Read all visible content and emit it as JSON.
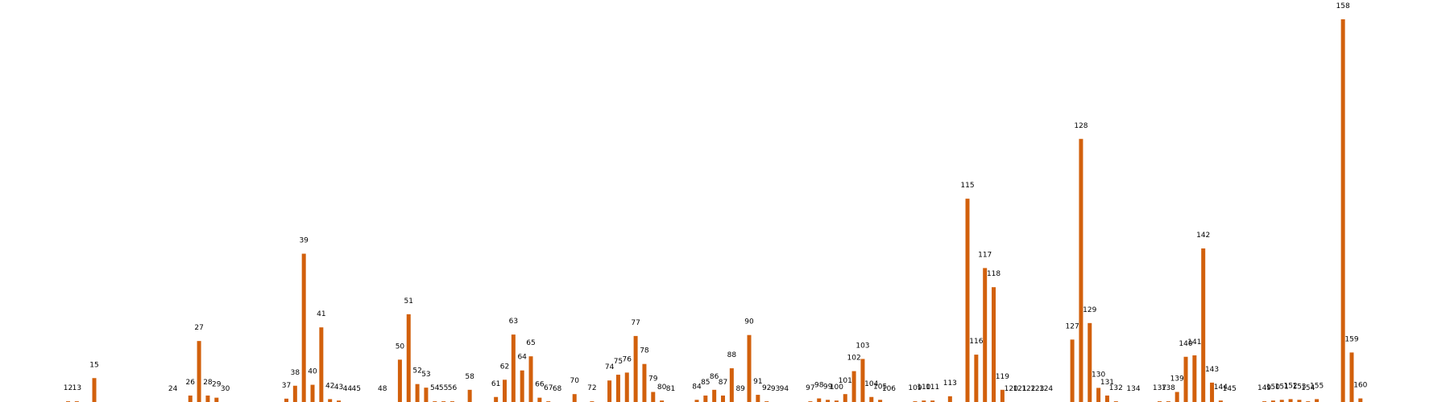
{
  "chart_data": {
    "type": "bar",
    "ylim": [
      0,
      160
    ],
    "grid": false,
    "legend": "none",
    "bar_color": "#d2600c",
    "categories": [
      "12",
      "13",
      "15",
      "24",
      "26",
      "27",
      "28",
      "29",
      "30",
      "37",
      "38",
      "39",
      "40",
      "41",
      "42",
      "43",
      "44",
      "45",
      "48",
      "50",
      "51",
      "52",
      "53",
      "54",
      "55",
      "56",
      "58",
      "61",
      "62",
      "63",
      "64",
      "65",
      "66",
      "67",
      "68",
      "70",
      "72",
      "74",
      "75",
      "76",
      "77",
      "78",
      "79",
      "80",
      "81",
      "84",
      "85",
      "86",
      "87",
      "88",
      "89",
      "90",
      "91",
      "92",
      "93",
      "94",
      "97",
      "98",
      "99",
      "100",
      "101",
      "102",
      "103",
      "104",
      "105",
      "106",
      "109",
      "110",
      "111",
      "113",
      "115",
      "116",
      "117",
      "118",
      "119",
      "120",
      "121",
      "122",
      "123",
      "124",
      "127",
      "128",
      "129",
      "130",
      "131",
      "132",
      "134",
      "137",
      "138",
      "139",
      "140",
      "141",
      "142",
      "143",
      "144",
      "145",
      "149",
      "150",
      "151",
      "152",
      "153",
      "154",
      "155",
      "158",
      "159",
      "160"
    ],
    "x": [
      12,
      13,
      15,
      24,
      26,
      27,
      28,
      29,
      30,
      37,
      38,
      39,
      40,
      41,
      42,
      43,
      44,
      45,
      48,
      50,
      51,
      52,
      53,
      54,
      55,
      56,
      58,
      61,
      62,
      63,
      64,
      65,
      66,
      67,
      68,
      70,
      72,
      74,
      75,
      76,
      77,
      78,
      79,
      80,
      81,
      84,
      85,
      86,
      87,
      88,
      89,
      90,
      91,
      92,
      93,
      94,
      97,
      98,
      99,
      100,
      101,
      102,
      103,
      104,
      105,
      106,
      109,
      110,
      111,
      113,
      115,
      116,
      117,
      118,
      119,
      120,
      121,
      122,
      123,
      124,
      127,
      128,
      129,
      130,
      131,
      132,
      134,
      137,
      138,
      139,
      140,
      141,
      142,
      143,
      144,
      145,
      149,
      150,
      151,
      152,
      153,
      154,
      155,
      158,
      159,
      160
    ],
    "values": [
      0.3,
      0.3,
      10,
      0,
      2.7,
      25.5,
      2.7,
      1.8,
      0,
      1.4,
      6.8,
      62,
      7.2,
      31.2,
      1.2,
      0.6,
      0,
      0,
      0,
      17.7,
      36.7,
      7.5,
      6,
      0.3,
      0.3,
      0.3,
      5.1,
      2.1,
      9.3,
      28.2,
      13.2,
      19.1,
      1.8,
      0.3,
      0,
      3.3,
      0.3,
      9,
      11.4,
      12.3,
      27.6,
      15.9,
      4.2,
      0.6,
      0,
      0.9,
      2.7,
      5.1,
      2.7,
      14.1,
      0,
      28,
      3,
      0.3,
      0,
      0,
      0.3,
      1.5,
      0.9,
      0.6,
      3.3,
      12.9,
      18,
      2.1,
      0.9,
      0,
      0.3,
      0.6,
      0.6,
      2.4,
      85,
      19.8,
      56,
      48,
      5.1,
      0,
      0,
      0,
      0,
      0,
      26.1,
      110,
      33,
      5.9,
      2.7,
      0.3,
      0,
      0.3,
      0.3,
      4.2,
      18.9,
      19.5,
      64.2,
      8.1,
      0.6,
      0,
      0.3,
      0.6,
      0.9,
      1.2,
      0.9,
      0.3,
      1.2,
      160,
      20.7,
      1.5
    ]
  }
}
